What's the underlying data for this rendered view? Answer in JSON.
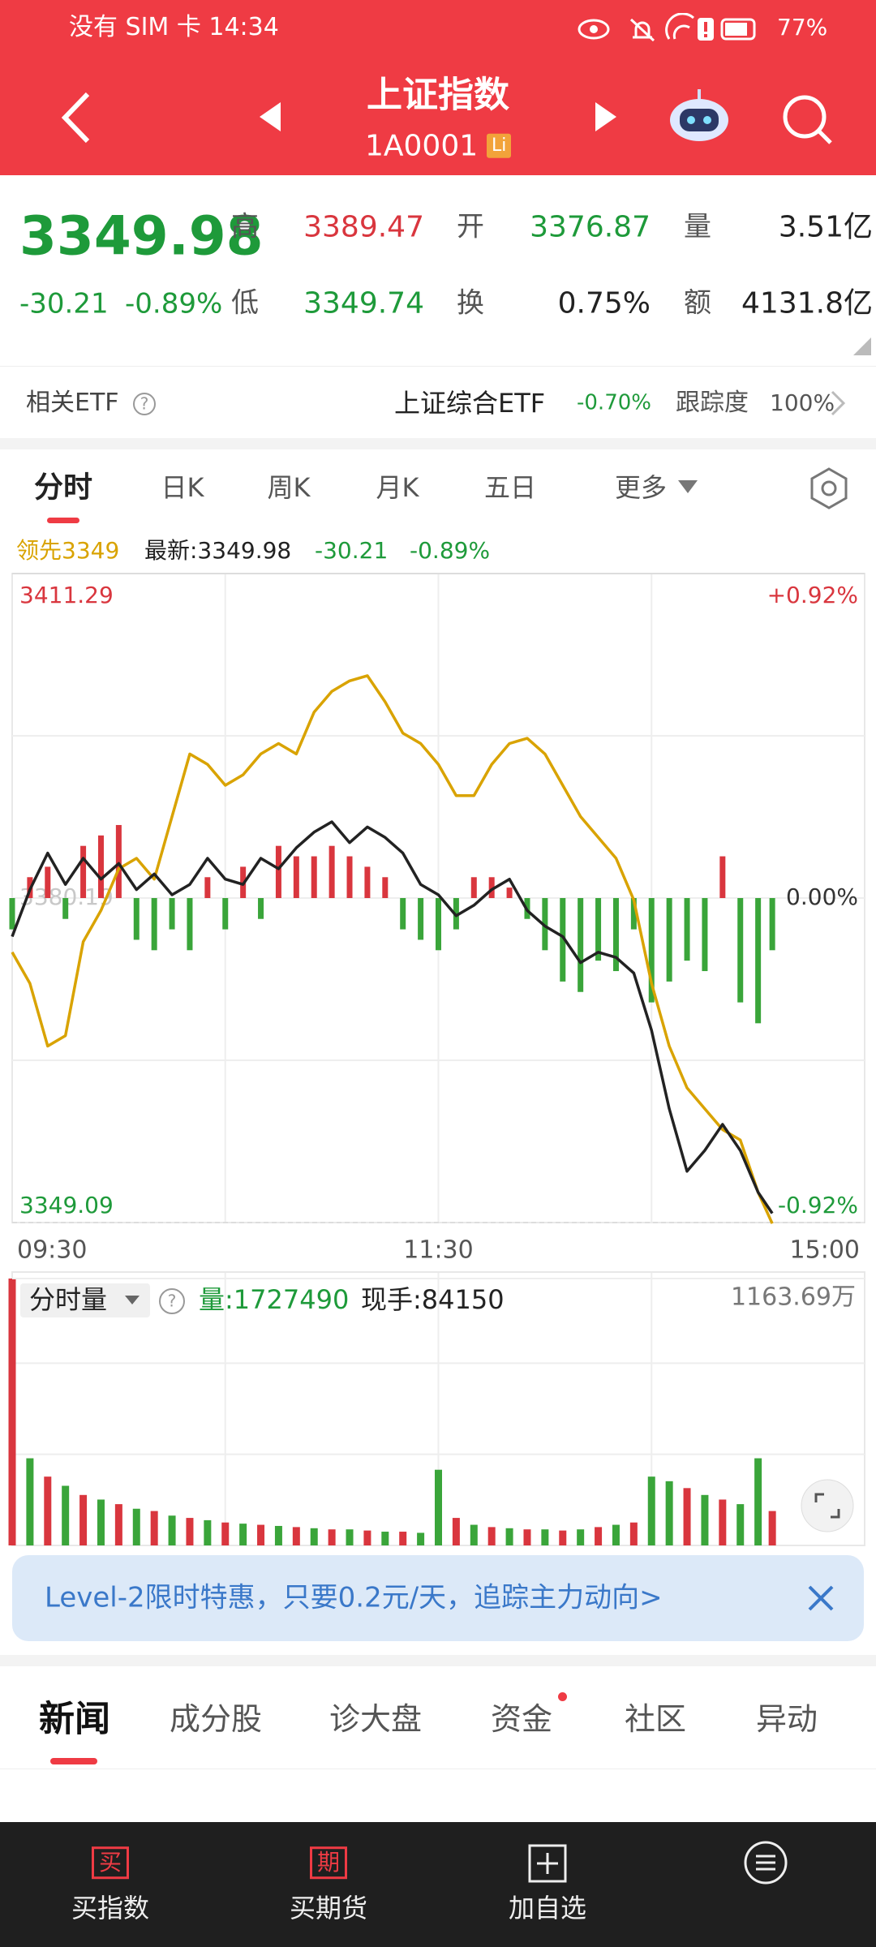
{
  "status_bar": {
    "carrier_time": "没有 SIM 卡 14:34",
    "battery": "77%"
  },
  "header": {
    "title": "上证指数",
    "code": "1A0001",
    "badge": "Li"
  },
  "quote": {
    "price": "3349.98",
    "change": "-30.21",
    "change_pct": "-0.89%",
    "stats": [
      {
        "label": "高",
        "value": "3389.47"
      },
      {
        "label": "开",
        "value": "3376.87"
      },
      {
        "label": "量",
        "value": "3.51亿"
      },
      {
        "label": "低",
        "value": "3349.74"
      },
      {
        "label": "换",
        "value": "0.75%"
      },
      {
        "label": "额",
        "value": "4131.8亿"
      }
    ]
  },
  "etf": {
    "label": "相关ETF",
    "name": "上证综合ETF",
    "change": "-0.70%",
    "tracking_label": "跟踪度",
    "tracking": "100%"
  },
  "tabs": [
    "分时",
    "日K",
    "周K",
    "月K",
    "五日",
    "更多"
  ],
  "chart_data": {
    "type": "line",
    "legend": {
      "lead": "领先3349",
      "latest": "最新:3349.98",
      "change": "-30.21",
      "change_pct": "-0.89%"
    },
    "x": [
      0,
      5,
      10,
      15,
      20,
      25,
      30,
      35,
      40,
      45,
      50,
      55,
      60,
      65,
      70,
      75,
      80,
      85,
      90,
      95,
      100,
      105,
      110,
      115,
      120,
      125,
      130,
      135,
      140,
      145,
      150,
      155,
      160,
      165,
      170,
      175,
      180,
      185,
      190,
      195,
      200,
      205,
      210,
      214
    ],
    "xlim": [
      0,
      240
    ],
    "xticks": [
      {
        "value": 0,
        "label": "09:30"
      },
      {
        "value": 120,
        "label": "11:30"
      },
      {
        "value": 240,
        "label": "15:00"
      }
    ],
    "ylim": [
      3349.09,
      3411.29
    ],
    "yticks": [
      3349.09,
      3380.19,
      3411.29
    ],
    "y2lim": [
      -0.92,
      0.92
    ],
    "y2ticks": [
      {
        "value": 0.92,
        "label": "+0.92%"
      },
      {
        "value": 0,
        "label": "0.00%"
      },
      {
        "value": -0.92,
        "label": "-0.92%"
      }
    ],
    "grid": true,
    "series": [
      {
        "color": "#d9a300",
        "values": [
          3375,
          3372,
          3366,
          3367,
          3376,
          3379,
          3383,
          3384,
          3382,
          3388,
          3394,
          3393,
          3391,
          3392,
          3394,
          3395,
          3394,
          3398,
          3400,
          3401,
          3401.5,
          3399,
          3396,
          3395,
          3393,
          3390,
          3390,
          3393,
          3395,
          3395.5,
          3394,
          3391,
          3388,
          3386,
          3384,
          3380,
          3372,
          3366,
          3362,
          3360,
          3358,
          3357,
          3352,
          3349
        ]
      },
      {
        "color": "#222222",
        "values": [
          3376.5,
          3381,
          3384.5,
          3381.5,
          3384,
          3382,
          3383.5,
          3381,
          3382.5,
          3380.5,
          3381.5,
          3384,
          3382,
          3381.5,
          3384,
          3383,
          3385,
          3386.5,
          3387.5,
          3385.5,
          3387,
          3386,
          3384.5,
          3381.5,
          3380.5,
          3378.5,
          3379.5,
          3381,
          3382,
          3379,
          3377.5,
          3376.5,
          3374,
          3375,
          3374.5,
          3373,
          3367.5,
          3360,
          3354,
          3356,
          3358.5,
          3356,
          3352,
          3349.98
        ]
      }
    ],
    "bars": {
      "up_color": "#d9363e",
      "down_color": "#3aa53a",
      "values": [
        -3,
        2,
        3,
        -2,
        5,
        6,
        7,
        -4,
        -5,
        -3,
        -5,
        2,
        -3,
        3,
        -2,
        5,
        4,
        4,
        5,
        4,
        3,
        2,
        -3,
        -4,
        -5,
        -3,
        2,
        2,
        1,
        -2,
        -5,
        -8,
        -9,
        -6,
        -7,
        -3,
        -10,
        -8,
        -6,
        -7,
        4,
        -10,
        -12,
        -5
      ]
    },
    "volume": {
      "title": "分时量",
      "total": "量:1727490",
      "last": "现手:84150",
      "ylim": [
        0,
        1163.69
      ],
      "yticks": [
        {
          "value": 1163.69,
          "label": "1163.69万"
        }
      ],
      "values": [
        1163.69,
        380,
        300,
        260,
        220,
        200,
        180,
        160,
        150,
        130,
        120,
        110,
        100,
        95,
        90,
        85,
        80,
        75,
        70,
        70,
        65,
        60,
        60,
        55,
        330,
        120,
        90,
        80,
        75,
        70,
        70,
        65,
        70,
        80,
        90,
        100,
        300,
        280,
        250,
        220,
        200,
        180,
        380,
        150
      ],
      "colors": [
        "#d9363e",
        "#3aa53a",
        "#d9363e",
        "#3aa53a",
        "#d9363e",
        "#3aa53a",
        "#d9363e",
        "#3aa53a",
        "#d9363e",
        "#3aa53a",
        "#d9363e",
        "#3aa53a",
        "#d9363e",
        "#3aa53a",
        "#d9363e",
        "#3aa53a",
        "#d9363e",
        "#3aa53a",
        "#d9363e",
        "#3aa53a",
        "#d9363e",
        "#3aa53a",
        "#d9363e",
        "#3aa53a",
        "#3aa53a",
        "#d9363e",
        "#3aa53a",
        "#d9363e",
        "#3aa53a",
        "#d9363e",
        "#3aa53a",
        "#d9363e",
        "#3aa53a",
        "#d9363e",
        "#3aa53a",
        "#d9363e",
        "#3aa53a",
        "#3aa53a",
        "#d9363e",
        "#3aa53a",
        "#d9363e",
        "#3aa53a",
        "#3aa53a",
        "#d9363e"
      ]
    }
  },
  "banner": {
    "text": "Level-2限时特惠，只要0.2元/天，追踪主力动向>"
  },
  "news_tabs": [
    "新闻",
    "成分股",
    "诊大盘",
    "资金",
    "社区",
    "异动"
  ],
  "bottom_nav": [
    {
      "icon": "买",
      "label": "买指数"
    },
    {
      "icon": "期",
      "label": "买期货"
    },
    {
      "label": "加自选"
    }
  ]
}
